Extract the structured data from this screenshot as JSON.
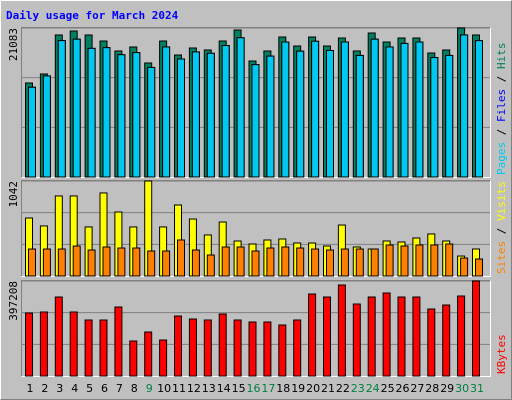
{
  "title": "Daily usage for March 2024",
  "legend_separator": " / ",
  "highlight_color": "#008040",
  "highlighted": [
    8,
    15,
    16,
    22,
    23,
    29,
    30
  ],
  "chart_data": [
    {
      "type": "bar",
      "ylim": [
        0,
        21083
      ],
      "yticks": [
        21083
      ],
      "grid": true,
      "series": [
        {
          "name": "Hits",
          "color": "#008060",
          "values": [
            13301,
            14575,
            20093,
            20659,
            20093,
            19244,
            17829,
            18395,
            16131,
            19244,
            17263,
            18254,
            17971,
            19244,
            20801,
            16414,
            17829,
            19810,
            18537,
            19810,
            18537,
            19669,
            17829,
            20376,
            19103,
            19669,
            19669,
            17546,
            17971,
            21083,
            20093
          ]
        },
        {
          "name": "Files",
          "color": "#0000ff",
          "values": [
            12700,
            14300,
            19300,
            19500,
            18200,
            18300,
            17300,
            17600,
            15500,
            18400,
            16700,
            17700,
            17500,
            18600,
            19700,
            15900,
            17100,
            19100,
            17800,
            19200,
            17900,
            19100,
            17200,
            19500,
            18400,
            18900,
            19100,
            16900,
            17200,
            20100,
            19300
          ]
        },
        {
          "name": "Pages",
          "color": "#00c8f0",
          "values": [
            12700,
            14300,
            19300,
            19500,
            18200,
            18300,
            17300,
            17600,
            15500,
            18400,
            16700,
            17700,
            17500,
            18600,
            19700,
            15900,
            17100,
            19100,
            17800,
            19200,
            17900,
            19100,
            17200,
            19500,
            18400,
            18900,
            19100,
            16900,
            17200,
            20100,
            19300
          ]
        }
      ]
    },
    {
      "type": "bar",
      "ylim": [
        0,
        1042
      ],
      "yticks": [
        1042
      ],
      "grid": true,
      "series": [
        {
          "name": "Visits",
          "color": "#ffff00",
          "values": [
            636,
            549,
            878,
            878,
            538,
            911,
            702,
            538,
            1042,
            538,
            779,
            625,
            450,
            592,
            384,
            351,
            395,
            406,
            362,
            362,
            329,
            559,
            318,
            296,
            384,
            373,
            417,
            461,
            384,
            219,
            296
          ]
        },
        {
          "name": "Sites",
          "color": "#ff8000",
          "values": [
            296,
            296,
            296,
            329,
            285,
            318,
            307,
            307,
            274,
            274,
            395,
            285,
            230,
            318,
            318,
            274,
            307,
            318,
            307,
            296,
            285,
            296,
            296,
            296,
            340,
            329,
            340,
            340,
            351,
            197,
            186
          ]
        }
      ]
    },
    {
      "type": "bar",
      "ylim": [
        0,
        397208
      ],
      "yticks": [
        397208
      ],
      "grid": true,
      "categories": [
        "1",
        "2",
        "3",
        "4",
        "5",
        "6",
        "7",
        "8",
        "9",
        "10",
        "11",
        "12",
        "13",
        "14",
        "15",
        "16",
        "17",
        "18",
        "19",
        "20",
        "21",
        "22",
        "23",
        "24",
        "25",
        "26",
        "27",
        "28",
        "29",
        "30",
        "31"
      ],
      "series": [
        {
          "name": "KBytes",
          "color": "#ff0000",
          "values": [
            263403,
            267584,
            330299,
            267584,
            234136,
            234136,
            288489,
            146335,
            183964,
            150516,
            250860,
            238317,
            234136,
            259222,
            234136,
            225774,
            225774,
            213231,
            234136,
            342842,
            330299,
            380471,
            301032,
            330299,
            347023,
            330299,
            330299,
            280127,
            296851,
            334480,
            397208
          ]
        }
      ]
    }
  ]
}
